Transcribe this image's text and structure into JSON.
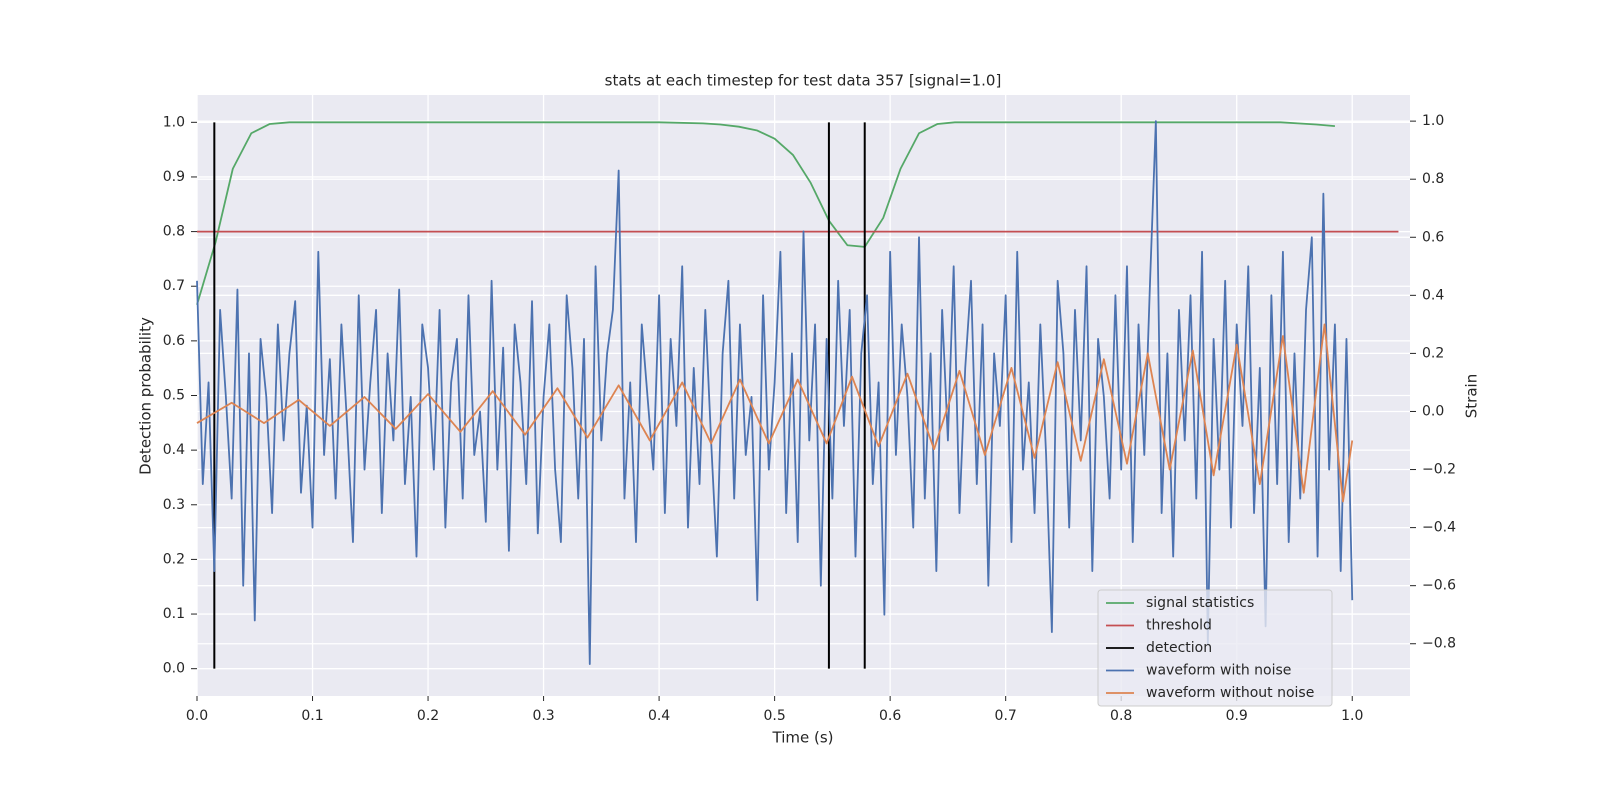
{
  "chart_data": {
    "type": "line",
    "title": "stats at each timestep for test data 357 [signal=1.0]",
    "xlabel": "Time (s)",
    "ylabel": "Detection probability",
    "y2label": "Strain",
    "xlim": [
      0,
      1.05
    ],
    "ylim": [
      -0.05,
      1.05
    ],
    "y2lim": [
      -0.98,
      1.09
    ],
    "xticks": [
      {
        "value": 0,
        "label": "0.0"
      },
      0.1,
      0.2,
      0.3,
      0.4,
      0.5,
      0.6,
      0.7,
      0.8,
      0.9,
      {
        "value": 1,
        "label": "1.0"
      }
    ],
    "yticks": [
      {
        "value": 0,
        "label": "0.0"
      },
      0.1,
      0.2,
      0.3,
      0.4,
      0.5,
      0.6,
      0.7,
      0.8,
      0.9,
      {
        "value": 1,
        "label": "1.0"
      }
    ],
    "y2ticks": [
      {
        "value": -0.8,
        "label": "−0.8"
      },
      {
        "value": -0.6,
        "label": "−0.6"
      },
      {
        "value": -0.4,
        "label": "−0.4"
      },
      {
        "value": -0.2,
        "label": "−0.2"
      },
      {
        "value": 0,
        "label": "0.0"
      },
      0.2,
      0.4,
      0.6,
      0.8,
      {
        "value": 1,
        "label": "1.0"
      }
    ],
    "grid": true,
    "legend_loc": "lower right",
    "series": [
      {
        "name": "signal statistics",
        "color": "#55a868",
        "x": [
          0,
          0.016,
          0.031,
          0.047,
          0.063,
          0.08,
          0.2,
          0.3,
          0.4,
          0.438,
          0.453,
          0.469,
          0.485,
          0.5,
          0.516,
          0.531,
          0.547,
          0.563,
          0.578,
          0.594,
          0.609,
          0.625,
          0.641,
          0.656,
          0.8,
          0.938,
          0.953,
          0.969,
          0.985
        ],
        "values": [
          0.666,
          0.78,
          0.915,
          0.98,
          0.997,
          1.0,
          1.0,
          1.0,
          1.0,
          0.998,
          0.996,
          0.992,
          0.985,
          0.97,
          0.94,
          0.89,
          0.82,
          0.775,
          0.772,
          0.825,
          0.915,
          0.98,
          0.997,
          1.0,
          1.0,
          1.0,
          0.998,
          0.996,
          0.993
        ]
      },
      {
        "name": "threshold",
        "color": "#c44e52",
        "x": [
          0,
          1.04
        ],
        "values": [
          0.8,
          0.8
        ]
      },
      {
        "name": "detection",
        "color": "#000000",
        "vlines": true,
        "x": [
          0.015,
          0.547,
          0.578
        ],
        "ymin": 0,
        "ymax": 1
      },
      {
        "name": "waveform with noise",
        "color": "#4c72b0",
        "axis": "y2",
        "xstep": 0.005,
        "values": [
          0.45,
          -0.25,
          0.1,
          -0.55,
          0.35,
          0.05,
          -0.3,
          0.42,
          -0.6,
          0.2,
          -0.72,
          0.25,
          0.05,
          -0.35,
          0.3,
          -0.1,
          0.2,
          0.38,
          -0.28,
          0.02,
          -0.4,
          0.55,
          -0.15,
          0.18,
          -0.3,
          0.3,
          -0.05,
          -0.45,
          0.4,
          -0.2,
          0.1,
          0.35,
          -0.35,
          0.2,
          -0.1,
          0.42,
          -0.25,
          0.05,
          -0.5,
          0.3,
          0.15,
          -0.2,
          0.35,
          -0.4,
          0.1,
          0.25,
          -0.3,
          0.4,
          -0.15,
          0.0,
          -0.38,
          0.45,
          -0.2,
          0.22,
          -0.48,
          0.3,
          0.1,
          -0.25,
          0.38,
          -0.42,
          0.05,
          0.3,
          -0.2,
          -0.45,
          0.4,
          0.15,
          -0.3,
          0.25,
          -0.87,
          0.5,
          -0.1,
          0.2,
          0.35,
          0.83,
          -0.3,
          0.1,
          -0.45,
          0.3,
          0.05,
          -0.2,
          0.4,
          -0.35,
          0.25,
          -0.05,
          0.5,
          -0.4,
          0.15,
          -0.25,
          0.35,
          -0.1,
          -0.5,
          0.2,
          0.45,
          -0.3,
          0.3,
          -0.15,
          0.05,
          -0.65,
          0.4,
          -0.2,
          0.1,
          0.55,
          -0.35,
          0.2,
          -0.45,
          0.62,
          -0.1,
          0.3,
          -0.6,
          0.25,
          -0.3,
          0.45,
          -0.05,
          0.35,
          -0.5,
          0.2,
          0.4,
          -0.25,
          0.1,
          -0.7,
          0.55,
          -0.15,
          0.3,
          0.05,
          -0.4,
          0.6,
          -0.3,
          0.2,
          -0.55,
          0.35,
          -0.1,
          0.5,
          -0.35,
          0.15,
          0.45,
          -0.25,
          0.3,
          -0.6,
          0.2,
          -0.05,
          0.4,
          -0.45,
          0.55,
          -0.2,
          0.1,
          -0.35,
          0.3,
          -0.15,
          -0.76,
          0.45,
          0.2,
          -0.4,
          0.35,
          -0.1,
          0.5,
          -0.55,
          0.25,
          0.05,
          -0.3,
          0.4,
          -0.2,
          0.5,
          -0.45,
          0.3,
          -0.15,
          0.45,
          1.0,
          -0.35,
          0.2,
          -0.5,
          0.35,
          -0.1,
          0.4,
          -0.3,
          0.55,
          -0.8,
          0.25,
          -0.2,
          0.45,
          -0.4,
          0.3,
          -0.05,
          0.5,
          -0.35,
          0.15,
          -0.74,
          0.4,
          -0.25,
          0.55,
          -0.45,
          0.2,
          -0.3,
          0.35,
          0.6,
          -0.5,
          0.75,
          -0.2,
          0.3,
          -0.55,
          0.25,
          -0.65
        ]
      },
      {
        "name": "waveform without noise",
        "color": "#dd8452",
        "axis": "y2",
        "x": [
          0,
          0.03,
          0.058,
          0.088,
          0.115,
          0.145,
          0.172,
          0.2,
          0.228,
          0.256,
          0.284,
          0.312,
          0.338,
          0.365,
          0.392,
          0.42,
          0.445,
          0.47,
          0.495,
          0.52,
          0.545,
          0.567,
          0.59,
          0.615,
          0.638,
          0.66,
          0.682,
          0.705,
          0.725,
          0.745,
          0.765,
          0.785,
          0.805,
          0.823,
          0.842,
          0.862,
          0.88,
          0.9,
          0.92,
          0.94,
          0.958,
          0.976,
          0.992,
          1.0
        ],
        "values": [
          -0.04,
          0.03,
          -0.04,
          0.04,
          -0.05,
          0.05,
          -0.06,
          0.06,
          -0.07,
          0.07,
          -0.08,
          0.08,
          -0.09,
          0.09,
          -0.1,
          0.1,
          -0.11,
          0.11,
          -0.11,
          0.11,
          -0.11,
          0.12,
          -0.12,
          0.13,
          -0.13,
          0.14,
          -0.15,
          0.15,
          -0.16,
          0.17,
          -0.17,
          0.18,
          -0.18,
          0.2,
          -0.2,
          0.21,
          -0.22,
          0.23,
          -0.25,
          0.26,
          -0.28,
          0.3,
          -0.31,
          -0.1
        ]
      }
    ]
  }
}
